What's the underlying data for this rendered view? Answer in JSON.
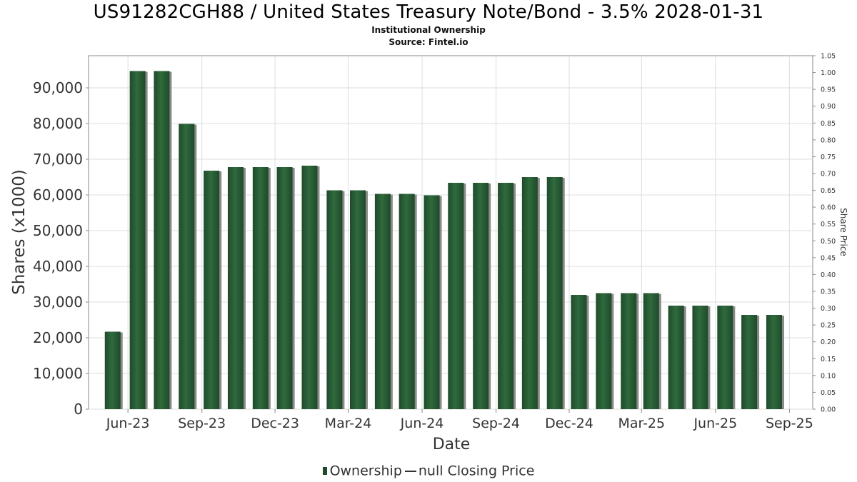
{
  "title": "US91282CGH88 / United States Treasury Note/Bond - 3.5% 2028-01-31",
  "subtitle": "Institutional Ownership",
  "source": "Source: Fintel.io",
  "legend": {
    "ownership": "Ownership",
    "closing_price": "null Closing Price"
  },
  "colors": {
    "bar": "#1f4a2a",
    "bar_highlight": "#2f6a3d",
    "bar_shadow": "#8a8a8a",
    "grid": "#dddddd",
    "axis": "#888888"
  },
  "chart_data": {
    "type": "bar",
    "xlabel": "Date",
    "ylabel": "Shares (x1000)",
    "y2label": "Share Price",
    "ylim": [
      0,
      99000
    ],
    "y2lim": [
      0,
      1.05
    ],
    "grid": true,
    "legend_position": "bottom",
    "xlim": [
      "2023-04-13",
      "2025-09-30"
    ],
    "x_ticks": [
      {
        "label": "Jun-23",
        "date": "2023-06-01"
      },
      {
        "label": "Sep-23",
        "date": "2023-09-01"
      },
      {
        "label": "Dec-23",
        "date": "2023-12-01"
      },
      {
        "label": "Mar-24",
        "date": "2024-03-01"
      },
      {
        "label": "Jun-24",
        "date": "2024-06-01"
      },
      {
        "label": "Sep-24",
        "date": "2024-09-01"
      },
      {
        "label": "Dec-24",
        "date": "2024-12-01"
      },
      {
        "label": "Mar-25",
        "date": "2025-03-01"
      },
      {
        "label": "Jun-25",
        "date": "2025-06-01"
      },
      {
        "label": "Sep-25",
        "date": "2025-09-01"
      }
    ],
    "y_ticks": [
      "0",
      "10,000",
      "20,000",
      "30,000",
      "40,000",
      "50,000",
      "60,000",
      "70,000",
      "80,000",
      "90,000"
    ],
    "y2_ticks": [
      "0.00",
      "0.05",
      "0.10",
      "0.15",
      "0.20",
      "0.25",
      "0.30",
      "0.35",
      "0.40",
      "0.45",
      "0.50",
      "0.55",
      "0.60",
      "0.65",
      "0.70",
      "0.75",
      "0.80",
      "0.85",
      "0.90",
      "0.95",
      "1.00",
      "1.05"
    ],
    "series": [
      {
        "name": "Ownership",
        "points": [
          {
            "x": "2023-05-13",
            "y": 21700
          },
          {
            "x": "2023-06-13",
            "y": 94700
          },
          {
            "x": "2023-07-13",
            "y": 94700
          },
          {
            "x": "2023-08-13",
            "y": 79900
          },
          {
            "x": "2023-09-13",
            "y": 66800
          },
          {
            "x": "2023-10-13",
            "y": 67800
          },
          {
            "x": "2023-11-13",
            "y": 67800
          },
          {
            "x": "2023-12-13",
            "y": 67800
          },
          {
            "x": "2024-01-13",
            "y": 68200
          },
          {
            "x": "2024-02-13",
            "y": 61300
          },
          {
            "x": "2024-03-13",
            "y": 61300
          },
          {
            "x": "2024-04-13",
            "y": 60300
          },
          {
            "x": "2024-05-13",
            "y": 60300
          },
          {
            "x": "2024-06-13",
            "y": 59900
          },
          {
            "x": "2024-07-13",
            "y": 63400
          },
          {
            "x": "2024-08-13",
            "y": 63400
          },
          {
            "x": "2024-09-13",
            "y": 63400
          },
          {
            "x": "2024-10-13",
            "y": 65000
          },
          {
            "x": "2024-11-13",
            "y": 65000
          },
          {
            "x": "2024-12-13",
            "y": 32000
          },
          {
            "x": "2025-01-13",
            "y": 32500
          },
          {
            "x": "2025-02-13",
            "y": 32500
          },
          {
            "x": "2025-03-13",
            "y": 32500
          },
          {
            "x": "2025-04-13",
            "y": 29000
          },
          {
            "x": "2025-05-13",
            "y": 29000
          },
          {
            "x": "2025-06-13",
            "y": 29000
          },
          {
            "x": "2025-07-13",
            "y": 26400
          },
          {
            "x": "2025-08-13",
            "y": 26400
          }
        ]
      }
    ]
  }
}
